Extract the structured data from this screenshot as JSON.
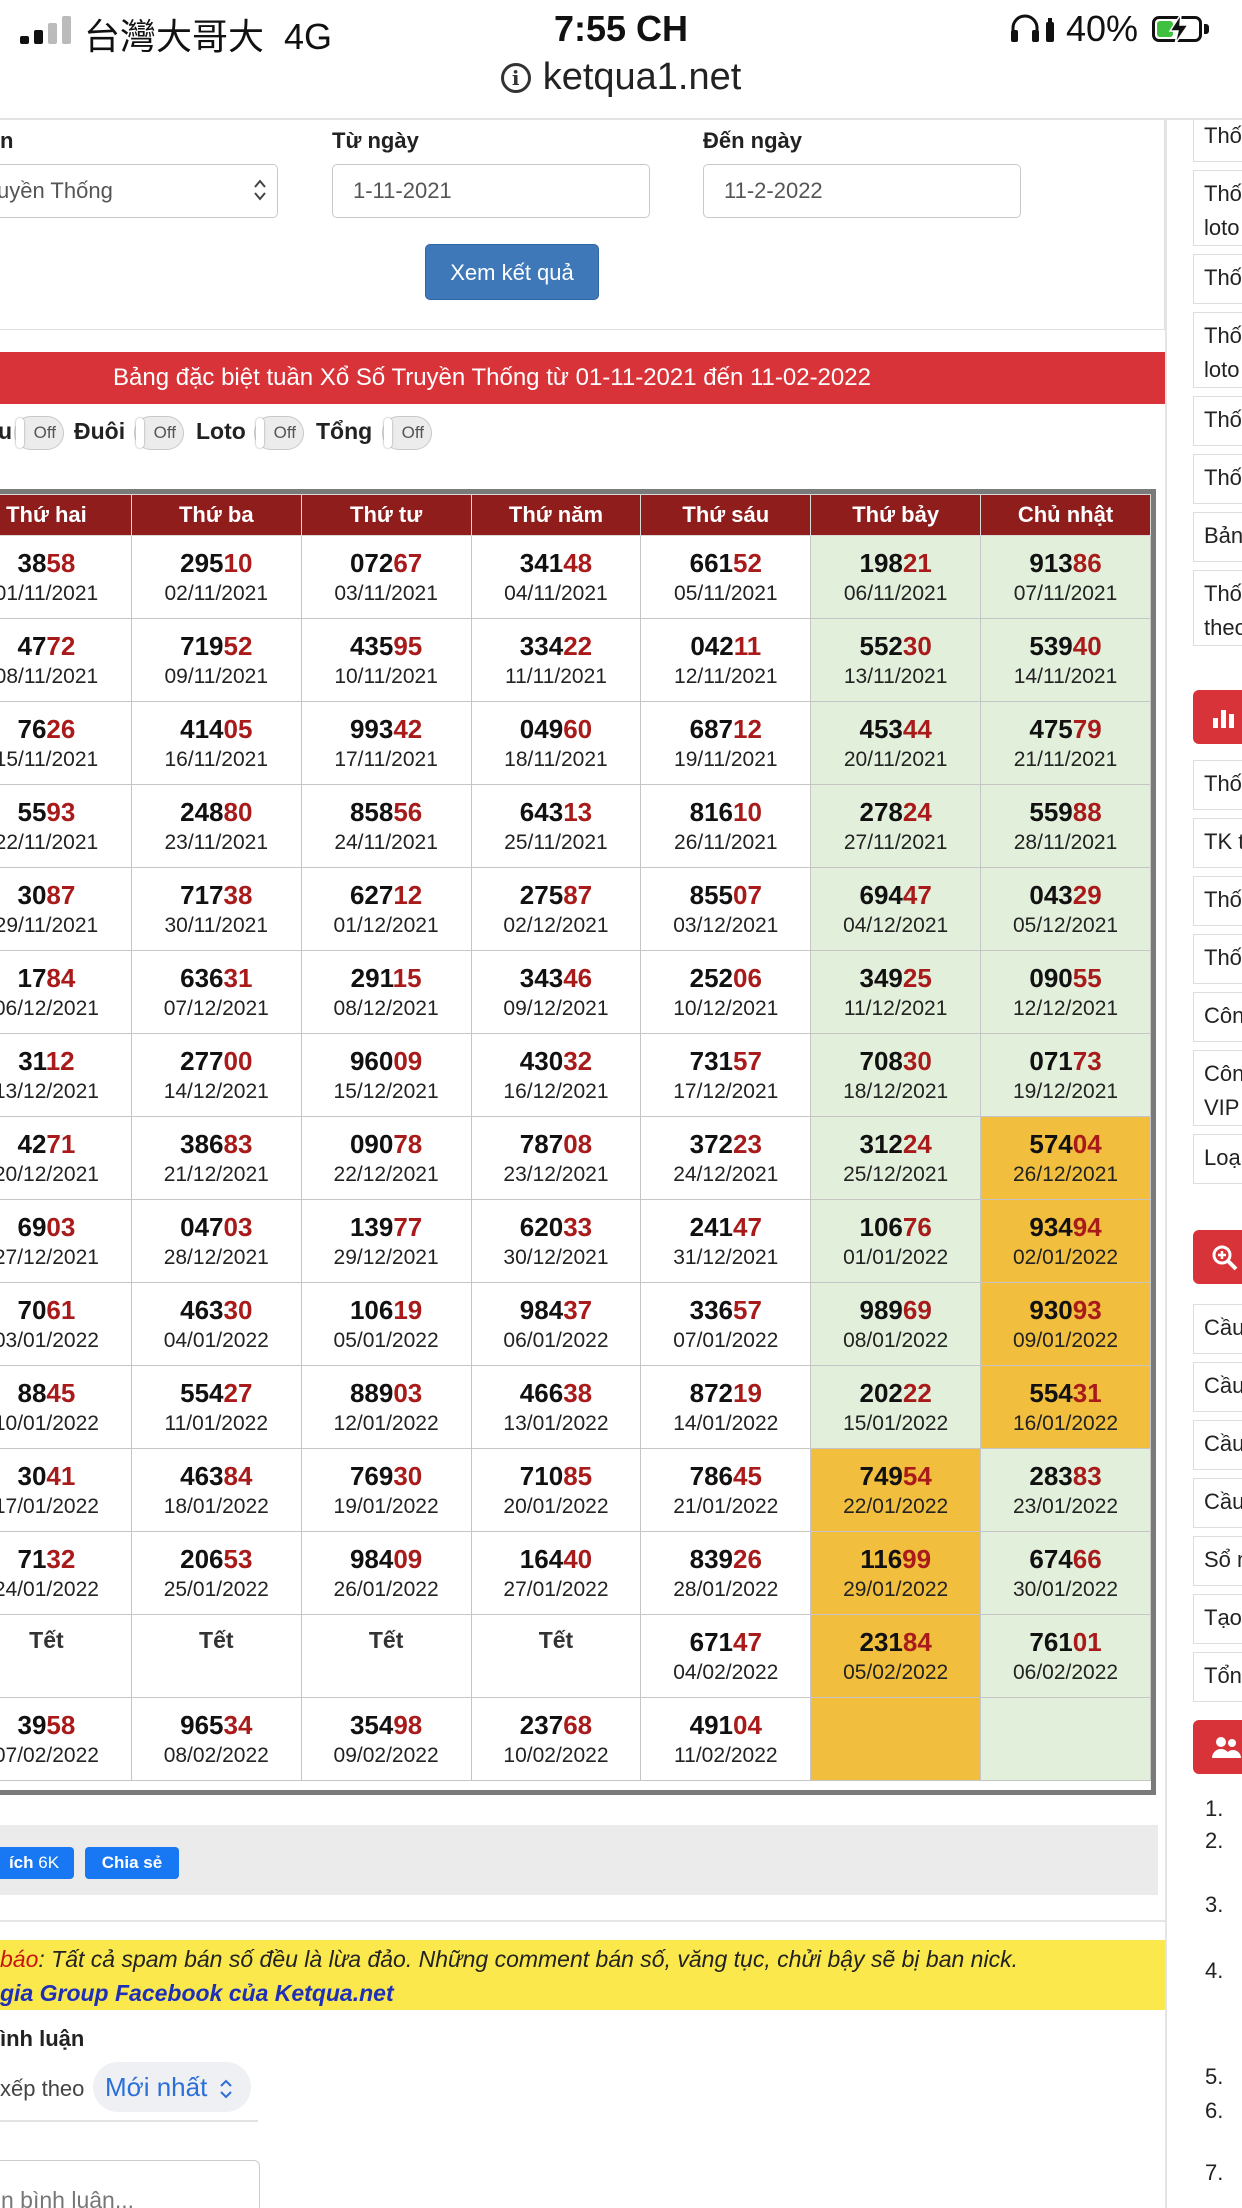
{
  "status_bar": {
    "carrier": "台灣大哥大",
    "network": "4G",
    "time": "7:55 CH",
    "battery": "40%",
    "battery_level": 0.4
  },
  "browser": {
    "url": "ketqua1.net"
  },
  "filter": {
    "province_label": "n",
    "province_value": "uyền Thống",
    "from_label": "Từ ngày",
    "from_value": "1-11-2021",
    "to_label": "Đến ngày",
    "to_value": "11-2-2022",
    "submit_label": "Xem kết quả"
  },
  "title": "Bảng đặc biệt tuần Xổ Số Truyền Thống từ 01-11-2021 đến 11-02-2022",
  "toggles": [
    {
      "label": "u",
      "state": "Off"
    },
    {
      "label": "Đuôi",
      "state": "Off"
    },
    {
      "label": "Loto",
      "state": "Off"
    },
    {
      "label": "Tổng",
      "state": "Off"
    }
  ],
  "table": {
    "headers": [
      "Thứ hai",
      "Thứ ba",
      "Thứ tư",
      "Thứ năm",
      "Thứ sáu",
      "Thứ bảy",
      "Chủ nhật"
    ],
    "rows": [
      [
        {
          "h": "38",
          "t": "58",
          "d": "01/11/2021"
        },
        {
          "h": "295",
          "t": "10",
          "d": "02/11/2021"
        },
        {
          "h": "072",
          "t": "67",
          "d": "03/11/2021"
        },
        {
          "h": "341",
          "t": "48",
          "d": "04/11/2021"
        },
        {
          "h": "661",
          "t": "52",
          "d": "05/11/2021"
        },
        {
          "h": "198",
          "t": "21",
          "d": "06/11/2021"
        },
        {
          "h": "913",
          "t": "86",
          "d": "07/11/2021"
        }
      ],
      [
        {
          "h": "47",
          "t": "72",
          "d": "08/11/2021"
        },
        {
          "h": "719",
          "t": "52",
          "d": "09/11/2021"
        },
        {
          "h": "435",
          "t": "95",
          "d": "10/11/2021"
        },
        {
          "h": "334",
          "t": "22",
          "d": "11/11/2021"
        },
        {
          "h": "042",
          "t": "11",
          "d": "12/11/2021"
        },
        {
          "h": "552",
          "t": "30",
          "d": "13/11/2021"
        },
        {
          "h": "539",
          "t": "40",
          "d": "14/11/2021"
        }
      ],
      [
        {
          "h": "76",
          "t": "26",
          "d": "15/11/2021"
        },
        {
          "h": "414",
          "t": "05",
          "d": "16/11/2021"
        },
        {
          "h": "993",
          "t": "42",
          "d": "17/11/2021"
        },
        {
          "h": "049",
          "t": "60",
          "d": "18/11/2021"
        },
        {
          "h": "687",
          "t": "12",
          "d": "19/11/2021"
        },
        {
          "h": "453",
          "t": "44",
          "d": "20/11/2021"
        },
        {
          "h": "475",
          "t": "79",
          "d": "21/11/2021"
        }
      ],
      [
        {
          "h": "55",
          "t": "93",
          "d": "22/11/2021"
        },
        {
          "h": "248",
          "t": "80",
          "d": "23/11/2021"
        },
        {
          "h": "858",
          "t": "56",
          "d": "24/11/2021"
        },
        {
          "h": "643",
          "t": "13",
          "d": "25/11/2021"
        },
        {
          "h": "816",
          "t": "10",
          "d": "26/11/2021"
        },
        {
          "h": "278",
          "t": "24",
          "d": "27/11/2021"
        },
        {
          "h": "559",
          "t": "88",
          "d": "28/11/2021"
        }
      ],
      [
        {
          "h": "30",
          "t": "87",
          "d": "29/11/2021"
        },
        {
          "h": "717",
          "t": "38",
          "d": "30/11/2021"
        },
        {
          "h": "627",
          "t": "12",
          "d": "01/12/2021"
        },
        {
          "h": "275",
          "t": "87",
          "d": "02/12/2021"
        },
        {
          "h": "855",
          "t": "07",
          "d": "03/12/2021"
        },
        {
          "h": "694",
          "t": "47",
          "d": "04/12/2021"
        },
        {
          "h": "043",
          "t": "29",
          "d": "05/12/2021"
        }
      ],
      [
        {
          "h": "17",
          "t": "84",
          "d": "06/12/2021"
        },
        {
          "h": "636",
          "t": "31",
          "d": "07/12/2021"
        },
        {
          "h": "291",
          "t": "15",
          "d": "08/12/2021"
        },
        {
          "h": "343",
          "t": "46",
          "d": "09/12/2021"
        },
        {
          "h": "252",
          "t": "06",
          "d": "10/12/2021"
        },
        {
          "h": "349",
          "t": "25",
          "d": "11/12/2021"
        },
        {
          "h": "090",
          "t": "55",
          "d": "12/12/2021"
        }
      ],
      [
        {
          "h": "31",
          "t": "12",
          "d": "13/12/2021"
        },
        {
          "h": "277",
          "t": "00",
          "d": "14/12/2021"
        },
        {
          "h": "960",
          "t": "09",
          "d": "15/12/2021"
        },
        {
          "h": "430",
          "t": "32",
          "d": "16/12/2021"
        },
        {
          "h": "731",
          "t": "57",
          "d": "17/12/2021"
        },
        {
          "h": "708",
          "t": "30",
          "d": "18/12/2021"
        },
        {
          "h": "071",
          "t": "73",
          "d": "19/12/2021"
        }
      ],
      [
        {
          "h": "42",
          "t": "71",
          "d": "20/12/2021"
        },
        {
          "h": "386",
          "t": "83",
          "d": "21/12/2021"
        },
        {
          "h": "090",
          "t": "78",
          "d": "22/12/2021"
        },
        {
          "h": "787",
          "t": "08",
          "d": "23/12/2021"
        },
        {
          "h": "372",
          "t": "23",
          "d": "24/12/2021"
        },
        {
          "h": "312",
          "t": "24",
          "d": "25/12/2021"
        },
        {
          "h": "574",
          "t": "04",
          "d": "26/12/2021",
          "hl": true
        }
      ],
      [
        {
          "h": "69",
          "t": "03",
          "d": "27/12/2021"
        },
        {
          "h": "047",
          "t": "03",
          "d": "28/12/2021"
        },
        {
          "h": "139",
          "t": "77",
          "d": "29/12/2021"
        },
        {
          "h": "620",
          "t": "33",
          "d": "30/12/2021"
        },
        {
          "h": "241",
          "t": "47",
          "d": "31/12/2021"
        },
        {
          "h": "106",
          "t": "76",
          "d": "01/01/2022"
        },
        {
          "h": "934",
          "t": "94",
          "d": "02/01/2022",
          "hl": true
        }
      ],
      [
        {
          "h": "70",
          "t": "61",
          "d": "03/01/2022"
        },
        {
          "h": "463",
          "t": "30",
          "d": "04/01/2022"
        },
        {
          "h": "106",
          "t": "19",
          "d": "05/01/2022"
        },
        {
          "h": "984",
          "t": "37",
          "d": "06/01/2022"
        },
        {
          "h": "336",
          "t": "57",
          "d": "07/01/2022"
        },
        {
          "h": "989",
          "t": "69",
          "d": "08/01/2022"
        },
        {
          "h": "930",
          "t": "93",
          "d": "09/01/2022",
          "hl": true
        }
      ],
      [
        {
          "h": "88",
          "t": "45",
          "d": "10/01/2022"
        },
        {
          "h": "554",
          "t": "27",
          "d": "11/01/2022"
        },
        {
          "h": "889",
          "t": "03",
          "d": "12/01/2022"
        },
        {
          "h": "466",
          "t": "38",
          "d": "13/01/2022"
        },
        {
          "h": "872",
          "t": "19",
          "d": "14/01/2022"
        },
        {
          "h": "202",
          "t": "22",
          "d": "15/01/2022"
        },
        {
          "h": "554",
          "t": "31",
          "d": "16/01/2022",
          "hl": true
        }
      ],
      [
        {
          "h": "30",
          "t": "41",
          "d": "17/01/2022"
        },
        {
          "h": "463",
          "t": "84",
          "d": "18/01/2022"
        },
        {
          "h": "769",
          "t": "30",
          "d": "19/01/2022"
        },
        {
          "h": "710",
          "t": "85",
          "d": "20/01/2022"
        },
        {
          "h": "786",
          "t": "45",
          "d": "21/01/2022"
        },
        {
          "h": "749",
          "t": "54",
          "d": "22/01/2022",
          "hl": true
        },
        {
          "h": "283",
          "t": "83",
          "d": "23/01/2022"
        }
      ],
      [
        {
          "h": "71",
          "t": "32",
          "d": "24/01/2022"
        },
        {
          "h": "206",
          "t": "53",
          "d": "25/01/2022"
        },
        {
          "h": "984",
          "t": "09",
          "d": "26/01/2022"
        },
        {
          "h": "164",
          "t": "40",
          "d": "27/01/2022"
        },
        {
          "h": "839",
          "t": "26",
          "d": "28/01/2022"
        },
        {
          "h": "116",
          "t": "99",
          "d": "29/01/2022",
          "hl": true
        },
        {
          "h": "674",
          "t": "66",
          "d": "30/01/2022"
        }
      ],
      [
        {
          "tet": "Tết"
        },
        {
          "tet": "Tết"
        },
        {
          "tet": "Tết"
        },
        {
          "tet": "Tết"
        },
        {
          "h": "671",
          "t": "47",
          "d": "04/02/2022"
        },
        {
          "h": "231",
          "t": "84",
          "d": "05/02/2022",
          "hl": true
        },
        {
          "h": "761",
          "t": "01",
          "d": "06/02/2022"
        }
      ],
      [
        {
          "h": "39",
          "t": "58",
          "d": "07/02/2022"
        },
        {
          "h": "965",
          "t": "34",
          "d": "08/02/2022"
        },
        {
          "h": "354",
          "t": "98",
          "d": "09/02/2022"
        },
        {
          "h": "237",
          "t": "68",
          "d": "10/02/2022"
        },
        {
          "h": "491",
          "t": "04",
          "d": "11/02/2022"
        },
        {
          "empty": true,
          "hl": true
        },
        {
          "empty": true
        }
      ]
    ]
  },
  "social": {
    "like_label": "ích",
    "like_count": "6K",
    "share_label": "Chia sẻ"
  },
  "warning": {
    "prefix": "báo",
    "text": ": Tất cả spam bán số đều là lừa đảo. Những comment bán số, văng tục, chửi bậy sẽ bị ban nick.",
    "link": "gia Group Facebook của Ketqua.net"
  },
  "comments": {
    "title": "ình luận",
    "sort_label": "xếp theo",
    "sort_value": "Mới nhất",
    "input_placeholder": "n bình luận..."
  },
  "sidebar": {
    "items_a": [
      {
        "label": "Thốn"
      },
      {
        "label": "Thốn\nloto"
      },
      {
        "label": "Thốn"
      },
      {
        "label": "Thốn\nloto"
      },
      {
        "label": "Thốn"
      },
      {
        "label": "Thốn"
      },
      {
        "label": "Bảng"
      },
      {
        "label": "Thốn\ntheo"
      }
    ],
    "items_b": [
      {
        "label": "Thốn"
      },
      {
        "label": "TK t"
      },
      {
        "label": "Thốn"
      },
      {
        "label": "Thốn"
      },
      {
        "label": "Côn"
      },
      {
        "label": "Côn\nVIP"
      },
      {
        "label": "Loại"
      }
    ],
    "items_c": [
      {
        "label": "Cầu"
      },
      {
        "label": "Cầu"
      },
      {
        "label": "Cầu"
      },
      {
        "label": "Cầu"
      },
      {
        "label": "Sổ m"
      },
      {
        "label": "Tạo"
      },
      {
        "label": "Tổng"
      }
    ],
    "numbers": [
      "1.",
      "2.",
      "3.",
      "4.",
      "5.",
      "6.",
      "7."
    ],
    "header_icons": [
      "bar-chart-icon",
      "search-plus-icon",
      "users-icon"
    ],
    "accent": "#d9333a"
  },
  "colors": {
    "header_bg": "#8e1d1c",
    "weekend_bg": "#e2efdb",
    "highlight_bg": "#f1be3e",
    "tail_digits": "#a91a1a",
    "title_bar": "#d9333a"
  }
}
